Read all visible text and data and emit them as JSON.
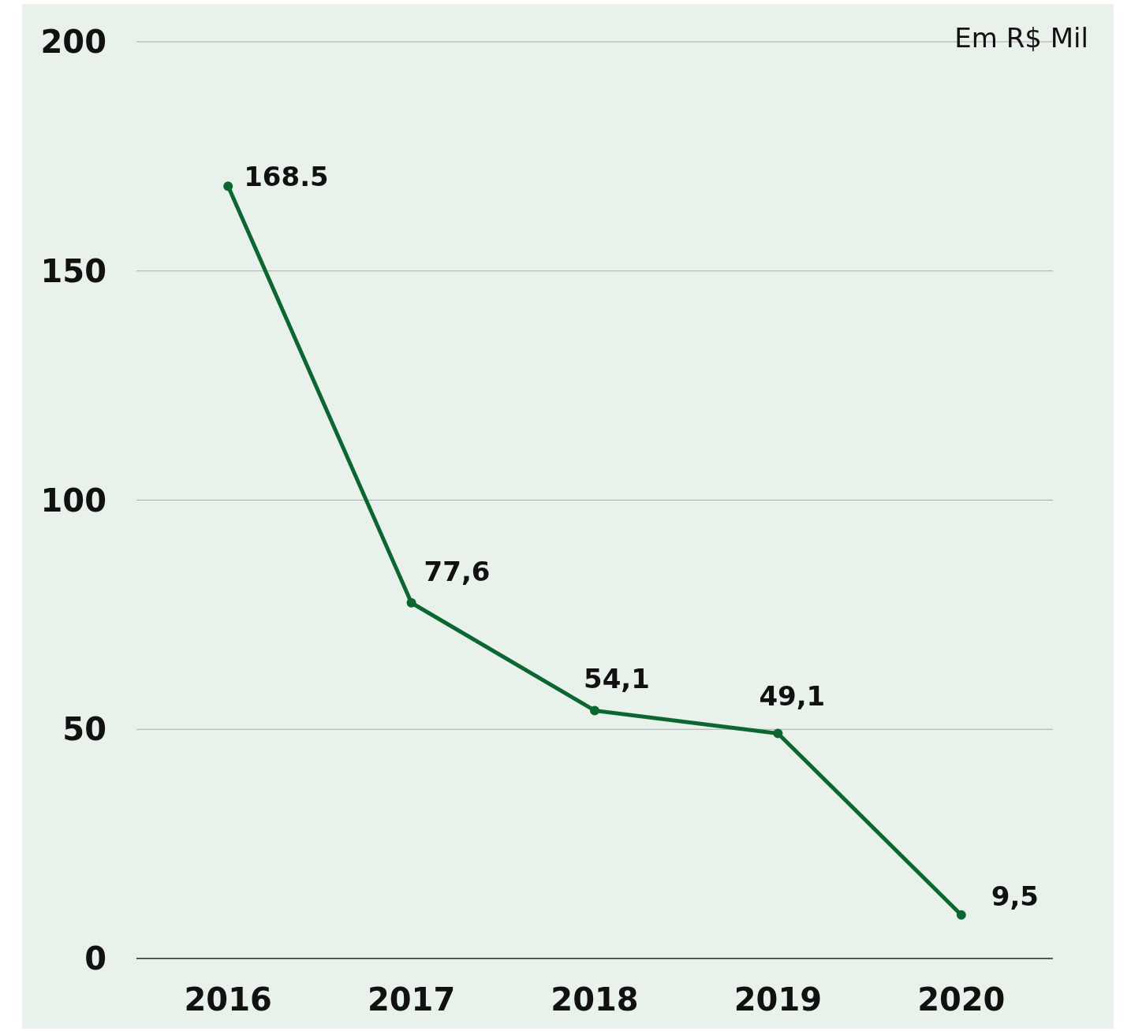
{
  "chart_data": {
    "type": "line",
    "categories": [
      "2016",
      "2017",
      "2018",
      "2019",
      "2020"
    ],
    "series": [
      {
        "color": "#0b6632",
        "values": [
          168.5,
          77.6,
          54.1,
          49.1,
          9.5
        ],
        "value_labels": [
          "168.5",
          "77,6",
          "54,1",
          "49,1",
          "9,5"
        ]
      }
    ],
    "ylim": [
      0,
      200
    ],
    "yticks": [
      0,
      50,
      100,
      150,
      200
    ],
    "grid": "y",
    "marker": "circle",
    "line_style": "solid",
    "annotations": [
      "Em R$ Mil"
    ]
  }
}
